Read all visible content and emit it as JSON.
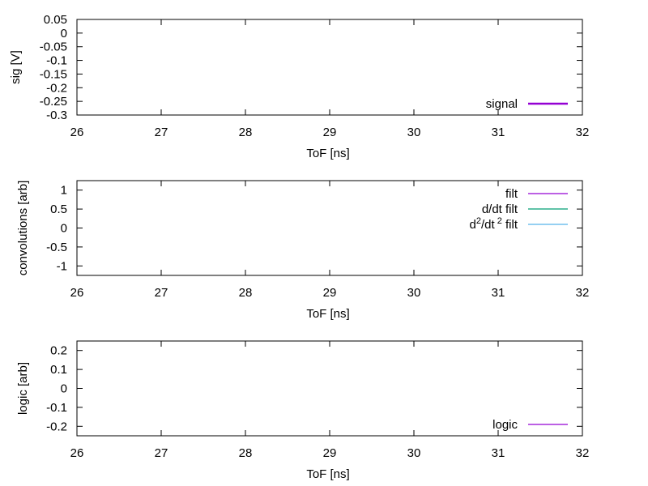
{
  "colors": {
    "background": "#ffffff",
    "axis": "#000000",
    "signal": "#9400d3",
    "filt": "#9400d3",
    "ddt_filt": "#009e73",
    "d2dt2_filt": "#56b4e9",
    "logic": "#9400d3"
  },
  "chart_data": [
    {
      "type": "line",
      "xlabel": "ToF [ns]",
      "ylabel": "sig [V]",
      "xlim": [
        26,
        32
      ],
      "ylim": [
        -0.3,
        0.05
      ],
      "xticks": [
        "26",
        "27",
        "28",
        "29",
        "30",
        "31",
        "32"
      ],
      "yticks": [
        "0.05",
        "0",
        "-0.05",
        "-0.1",
        "-0.15",
        "-0.2",
        "-0.25",
        "-0.3"
      ],
      "grid": false,
      "legend_position": "bottom-right",
      "series": [
        {
          "name": "signal",
          "color": "#9400d3",
          "line_weight": "thick",
          "points": []
        }
      ]
    },
    {
      "type": "line",
      "xlabel": "ToF [ns]",
      "ylabel": "convolutions [arb]",
      "xlim": [
        26,
        32
      ],
      "ylim": [
        -1.25,
        1.25
      ],
      "xticks": [
        "26",
        "27",
        "28",
        "29",
        "30",
        "31",
        "32"
      ],
      "yticks": [
        "1",
        "0.5",
        "0",
        "-0.5",
        "-1"
      ],
      "grid": false,
      "legend_position": "top-right",
      "series": [
        {
          "name": "filt",
          "color": "#9400d3",
          "line_weight": "thin",
          "points": []
        },
        {
          "name": "d/dt filt",
          "color": "#009e73",
          "line_weight": "thin",
          "points": []
        },
        {
          "name": "d2/dt2 filt",
          "color": "#56b4e9",
          "line_weight": "thin",
          "points": []
        }
      ]
    },
    {
      "type": "line",
      "xlabel": "ToF [ns]",
      "ylabel": "logic [arb]",
      "xlim": [
        26,
        32
      ],
      "ylim": [
        -0.25,
        0.25
      ],
      "xticks": [
        "26",
        "27",
        "28",
        "29",
        "30",
        "31",
        "32"
      ],
      "yticks": [
        "0.2",
        "0.1",
        "0",
        "-0.1",
        "-0.2"
      ],
      "grid": false,
      "legend_position": "bottom-right",
      "series": [
        {
          "name": "logic",
          "color": "#9400d3",
          "line_weight": "thin",
          "points": []
        }
      ]
    }
  ]
}
